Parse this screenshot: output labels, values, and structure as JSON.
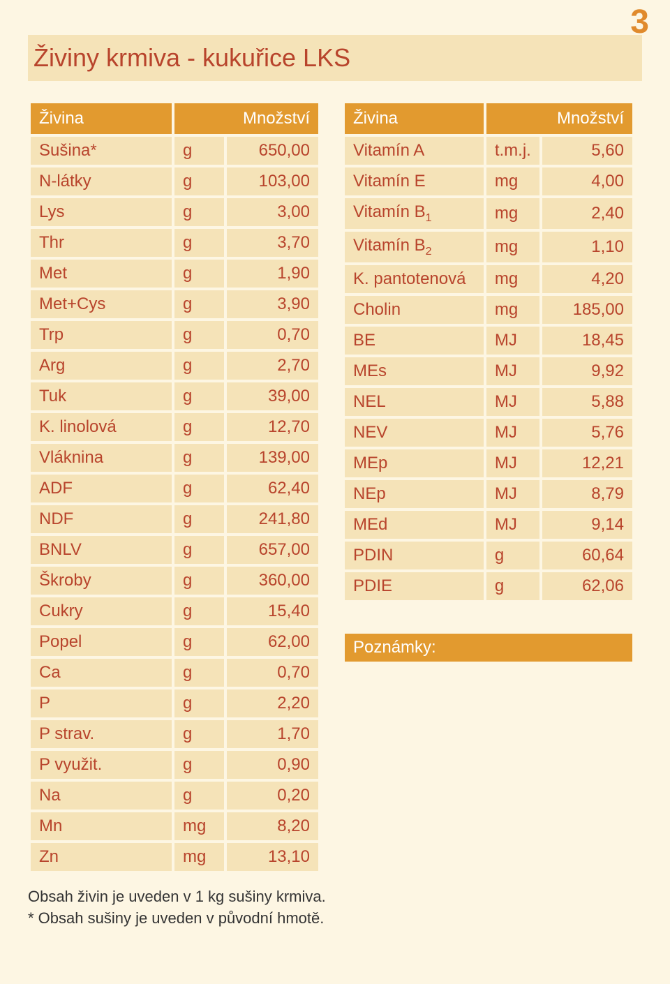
{
  "page_number": "3",
  "title": "Živiny krmiva - kukuřice LKS",
  "colors": {
    "page_bg": "#fdf6e3",
    "cell_bg": "#f5e3b8",
    "header_bg": "#e29a2f",
    "header_fg": "#ffffff",
    "text": "#b8442c",
    "footer": "#333333"
  },
  "headers": {
    "name": "Živina",
    "qty": "Množství"
  },
  "left_rows": [
    {
      "name": "Sušina*",
      "unit": "g",
      "val": "650,00"
    },
    {
      "name": "N-látky",
      "unit": "g",
      "val": "103,00"
    },
    {
      "name": "Lys",
      "unit": "g",
      "val": "3,00"
    },
    {
      "name": "Thr",
      "unit": "g",
      "val": "3,70"
    },
    {
      "name": "Met",
      "unit": "g",
      "val": "1,90"
    },
    {
      "name": "Met+Cys",
      "unit": "g",
      "val": "3,90"
    },
    {
      "name": "Trp",
      "unit": "g",
      "val": "0,70"
    },
    {
      "name": "Arg",
      "unit": "g",
      "val": "2,70"
    },
    {
      "name": "Tuk",
      "unit": "g",
      "val": "39,00"
    },
    {
      "name": "K. linolová",
      "unit": "g",
      "val": "12,70"
    },
    {
      "name": "Vláknina",
      "unit": "g",
      "val": "139,00"
    },
    {
      "name": "ADF",
      "unit": "g",
      "val": "62,40"
    },
    {
      "name": "NDF",
      "unit": "g",
      "val": "241,80"
    },
    {
      "name": "BNLV",
      "unit": "g",
      "val": "657,00"
    },
    {
      "name": "Škroby",
      "unit": "g",
      "val": "360,00"
    },
    {
      "name": "Cukry",
      "unit": "g",
      "val": "15,40"
    },
    {
      "name": "Popel",
      "unit": "g",
      "val": "62,00"
    },
    {
      "name": "Ca",
      "unit": "g",
      "val": "0,70"
    },
    {
      "name": "P",
      "unit": "g",
      "val": "2,20"
    },
    {
      "name": "P strav.",
      "unit": "g",
      "val": "1,70"
    },
    {
      "name": "P využit.",
      "unit": "g",
      "val": "0,90"
    },
    {
      "name": "Na",
      "unit": "g",
      "val": "0,20"
    },
    {
      "name": "Mn",
      "unit": "mg",
      "val": "8,20"
    },
    {
      "name": "Zn",
      "unit": "mg",
      "val": "13,10"
    }
  ],
  "right_rows": [
    {
      "name": "Vitamín A",
      "unit": "t.m.j.",
      "val": "5,60"
    },
    {
      "name": "Vitamín E",
      "unit": "mg",
      "val": "4,00"
    },
    {
      "name": "Vitamín B",
      "sub": "1",
      "unit": "mg",
      "val": "2,40"
    },
    {
      "name": "Vitamín B",
      "sub": "2",
      "unit": "mg",
      "val": "1,10"
    },
    {
      "name": "K. pantotenová",
      "unit": "mg",
      "val": "4,20"
    },
    {
      "name": "Cholin",
      "unit": "mg",
      "val": "185,00"
    },
    {
      "name": "BE",
      "unit": "MJ",
      "val": "18,45"
    },
    {
      "name": "MEs",
      "unit": "MJ",
      "val": "9,92"
    },
    {
      "name": "NEL",
      "unit": "MJ",
      "val": "5,88"
    },
    {
      "name": "NEV",
      "unit": "MJ",
      "val": "5,76"
    },
    {
      "name": "MEp",
      "unit": "MJ",
      "val": "12,21"
    },
    {
      "name": "NEp",
      "unit": "MJ",
      "val": "8,79"
    },
    {
      "name": "MEd",
      "unit": "MJ",
      "val": "9,14"
    },
    {
      "name": "PDIN",
      "unit": "g",
      "val": "60,64"
    },
    {
      "name": "PDIE",
      "unit": "g",
      "val": "62,06"
    }
  ],
  "notes_label": "Poznámky:",
  "footer_line1": "Obsah živin je uveden v 1 kg sušiny krmiva.",
  "footer_line2": "* Obsah sušiny je uveden  v původní hmotě."
}
